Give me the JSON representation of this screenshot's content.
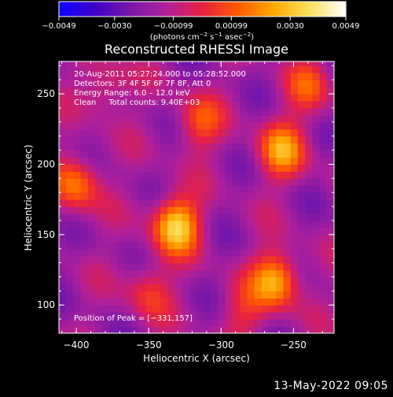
{
  "chart_data": {
    "type": "heatmap",
    "title": "Reconstructed RHESSI Image",
    "xlabel": "Heliocentric X (arcsec)",
    "ylabel": "Heliocentric Y (arcsec)",
    "xlim": [
      -412,
      -222
    ],
    "ylim": [
      80,
      273
    ],
    "xticks": [
      -400,
      -350,
      -300,
      -250
    ],
    "xtick_labels": [
      "−400",
      "−350",
      "−300",
      "−250"
    ],
    "yticks": [
      100,
      150,
      200,
      250
    ],
    "ytick_labels": [
      "100",
      "150",
      "200",
      "250"
    ],
    "colorbar": {
      "ticks": [
        -0.0049,
        -0.003,
        -0.00099,
        0.00099,
        0.003,
        0.0049
      ],
      "tick_labels": [
        "−0.0049",
        "−0.0030",
        "−0.00099",
        "0.00099",
        "0.0030",
        "0.0049"
      ],
      "units_html": "(photons cm<tspan baseline-shift=\"super\" font-size=\"7\">−2</tspan> s<tspan baseline-shift=\"super\" font-size=\"7\">−1</tspan> asec<tspan baseline-shift=\"super\" font-size=\"7\">−2</tspan>)",
      "colors": [
        "#0a00ff",
        "#3f00c8",
        "#7a18a8",
        "#b0209a",
        "#e82040",
        "#ff5a00",
        "#ffaa00",
        "#ffe060",
        "#ffffff"
      ]
    },
    "annotations": [
      "20‑Aug‑2011 05:27:24.000 to 05:28:52.000",
      "Detectors: 3F 4F 5F 6F 7F 8F, Att 0",
      "Energy Range: 6.0 – 12.0 keV",
      "Clean     Total counts: 9.40E+03"
    ],
    "peak_label": "Position of Peak = [−331,157]",
    "peak": [
      -331,
      157
    ],
    "sources": [
      {
        "x": -331,
        "y": 157,
        "peak": 0.0049
      },
      {
        "x": -262,
        "y": 118,
        "peak": 0.0042
      },
      {
        "x": -258,
        "y": 210,
        "peak": 0.0036
      },
      {
        "x": -400,
        "y": 186,
        "peak": 0.0032
      },
      {
        "x": -315,
        "y": 230,
        "peak": 0.0024
      },
      {
        "x": -350,
        "y": 110,
        "peak": 0.002
      },
      {
        "x": -285,
        "y": 95,
        "peak": 0.0016
      },
      {
        "x": -380,
        "y": 255,
        "peak": 0.0018
      },
      {
        "x": -240,
        "y": 255,
        "peak": 0.0022
      }
    ]
  },
  "footer": {
    "timestamp": "13‑May‑2022 09:05"
  }
}
